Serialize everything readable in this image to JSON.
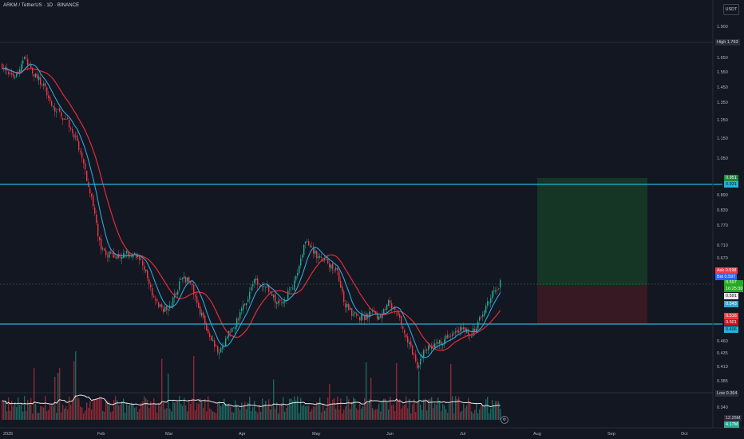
{
  "header": {
    "symbol_line": "ARKM / TetherUS · 1D · BINANCE",
    "currency": "USDT"
  },
  "price_axis": {
    "ticks": [
      "1.900",
      "1.650",
      "1.550",
      "1.450",
      "1.350",
      "1.250",
      "1.150",
      "1.050",
      "0.890",
      "0.830",
      "0.770",
      "0.710",
      "0.670",
      "0.460",
      "0.435",
      "0.410",
      "0.385",
      "0.340"
    ]
  },
  "time_axis": {
    "labels": [
      "2025",
      "Feb",
      "Mar",
      "Apr",
      "May",
      "Jun",
      "Jul",
      "Aug",
      "Sep",
      "Oct"
    ]
  },
  "markers": {
    "high_label": "High",
    "high_value": "1.763",
    "low_label": "Low",
    "low_value": "0.364",
    "target_a": "0.951",
    "target_b": "0.931",
    "ask_label": "Ask",
    "ask_value": "0.598",
    "bid_label": "Bid",
    "bid_value": "0.597",
    "last_price": "0.597",
    "countdown": "16:25:30",
    "ma_fast": "0.591",
    "ma_slow": "0.543",
    "stop_a": "0.516",
    "stop_b": "0.501",
    "support": "0.496",
    "volume_a": "12.25M",
    "volume_b": "4.17M"
  },
  "colors": {
    "background": "#131722",
    "bull": "#22ab94",
    "bear": "#f23645",
    "cyan_line": "#22b5d8",
    "ma_fast": "#2fa7d9",
    "ma_slow": "#e32c3a",
    "profit_zone": "#163a26",
    "loss_zone": "#3b1a22"
  },
  "settings_icon": "gear-icon"
}
